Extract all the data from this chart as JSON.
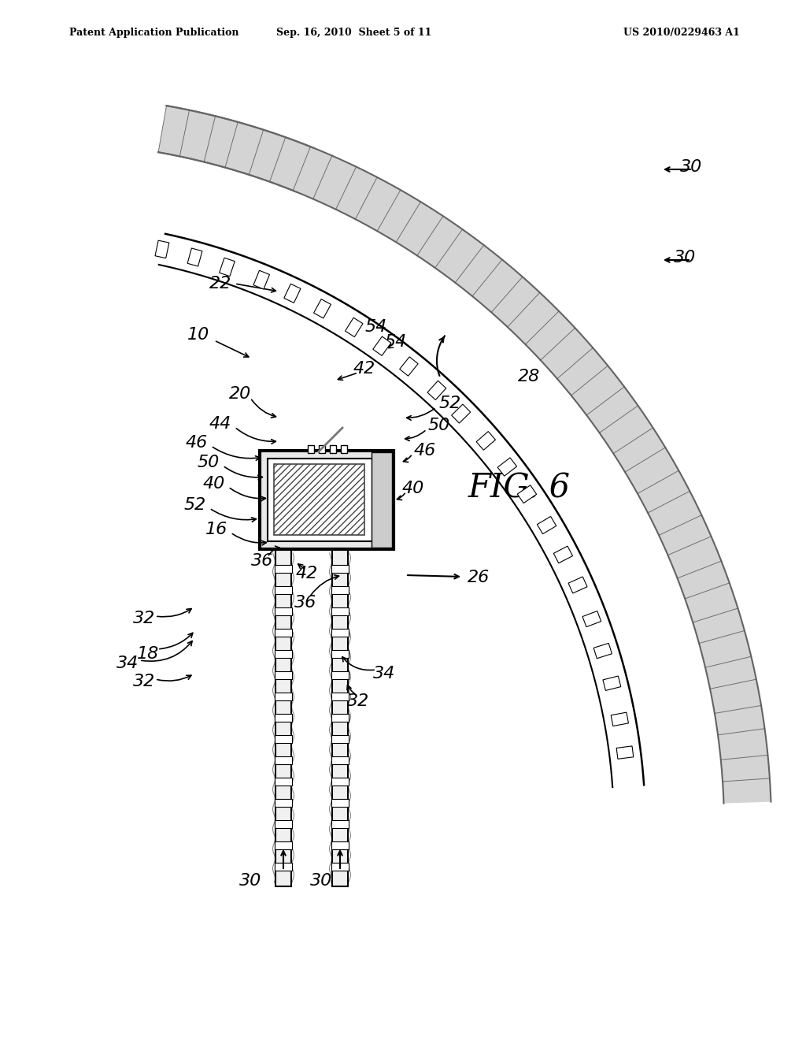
{
  "title_left": "Patent Application Publication",
  "title_center": "Sep. 16, 2010  Sheet 5 of 11",
  "title_right": "US 2010/0229463 A1",
  "fig_label": "FIG. 6",
  "bg_color": "#ffffff",
  "line_color": "#000000",
  "gray1": "#666666",
  "gray2": "#999999",
  "gray3": "#bbbbbb"
}
